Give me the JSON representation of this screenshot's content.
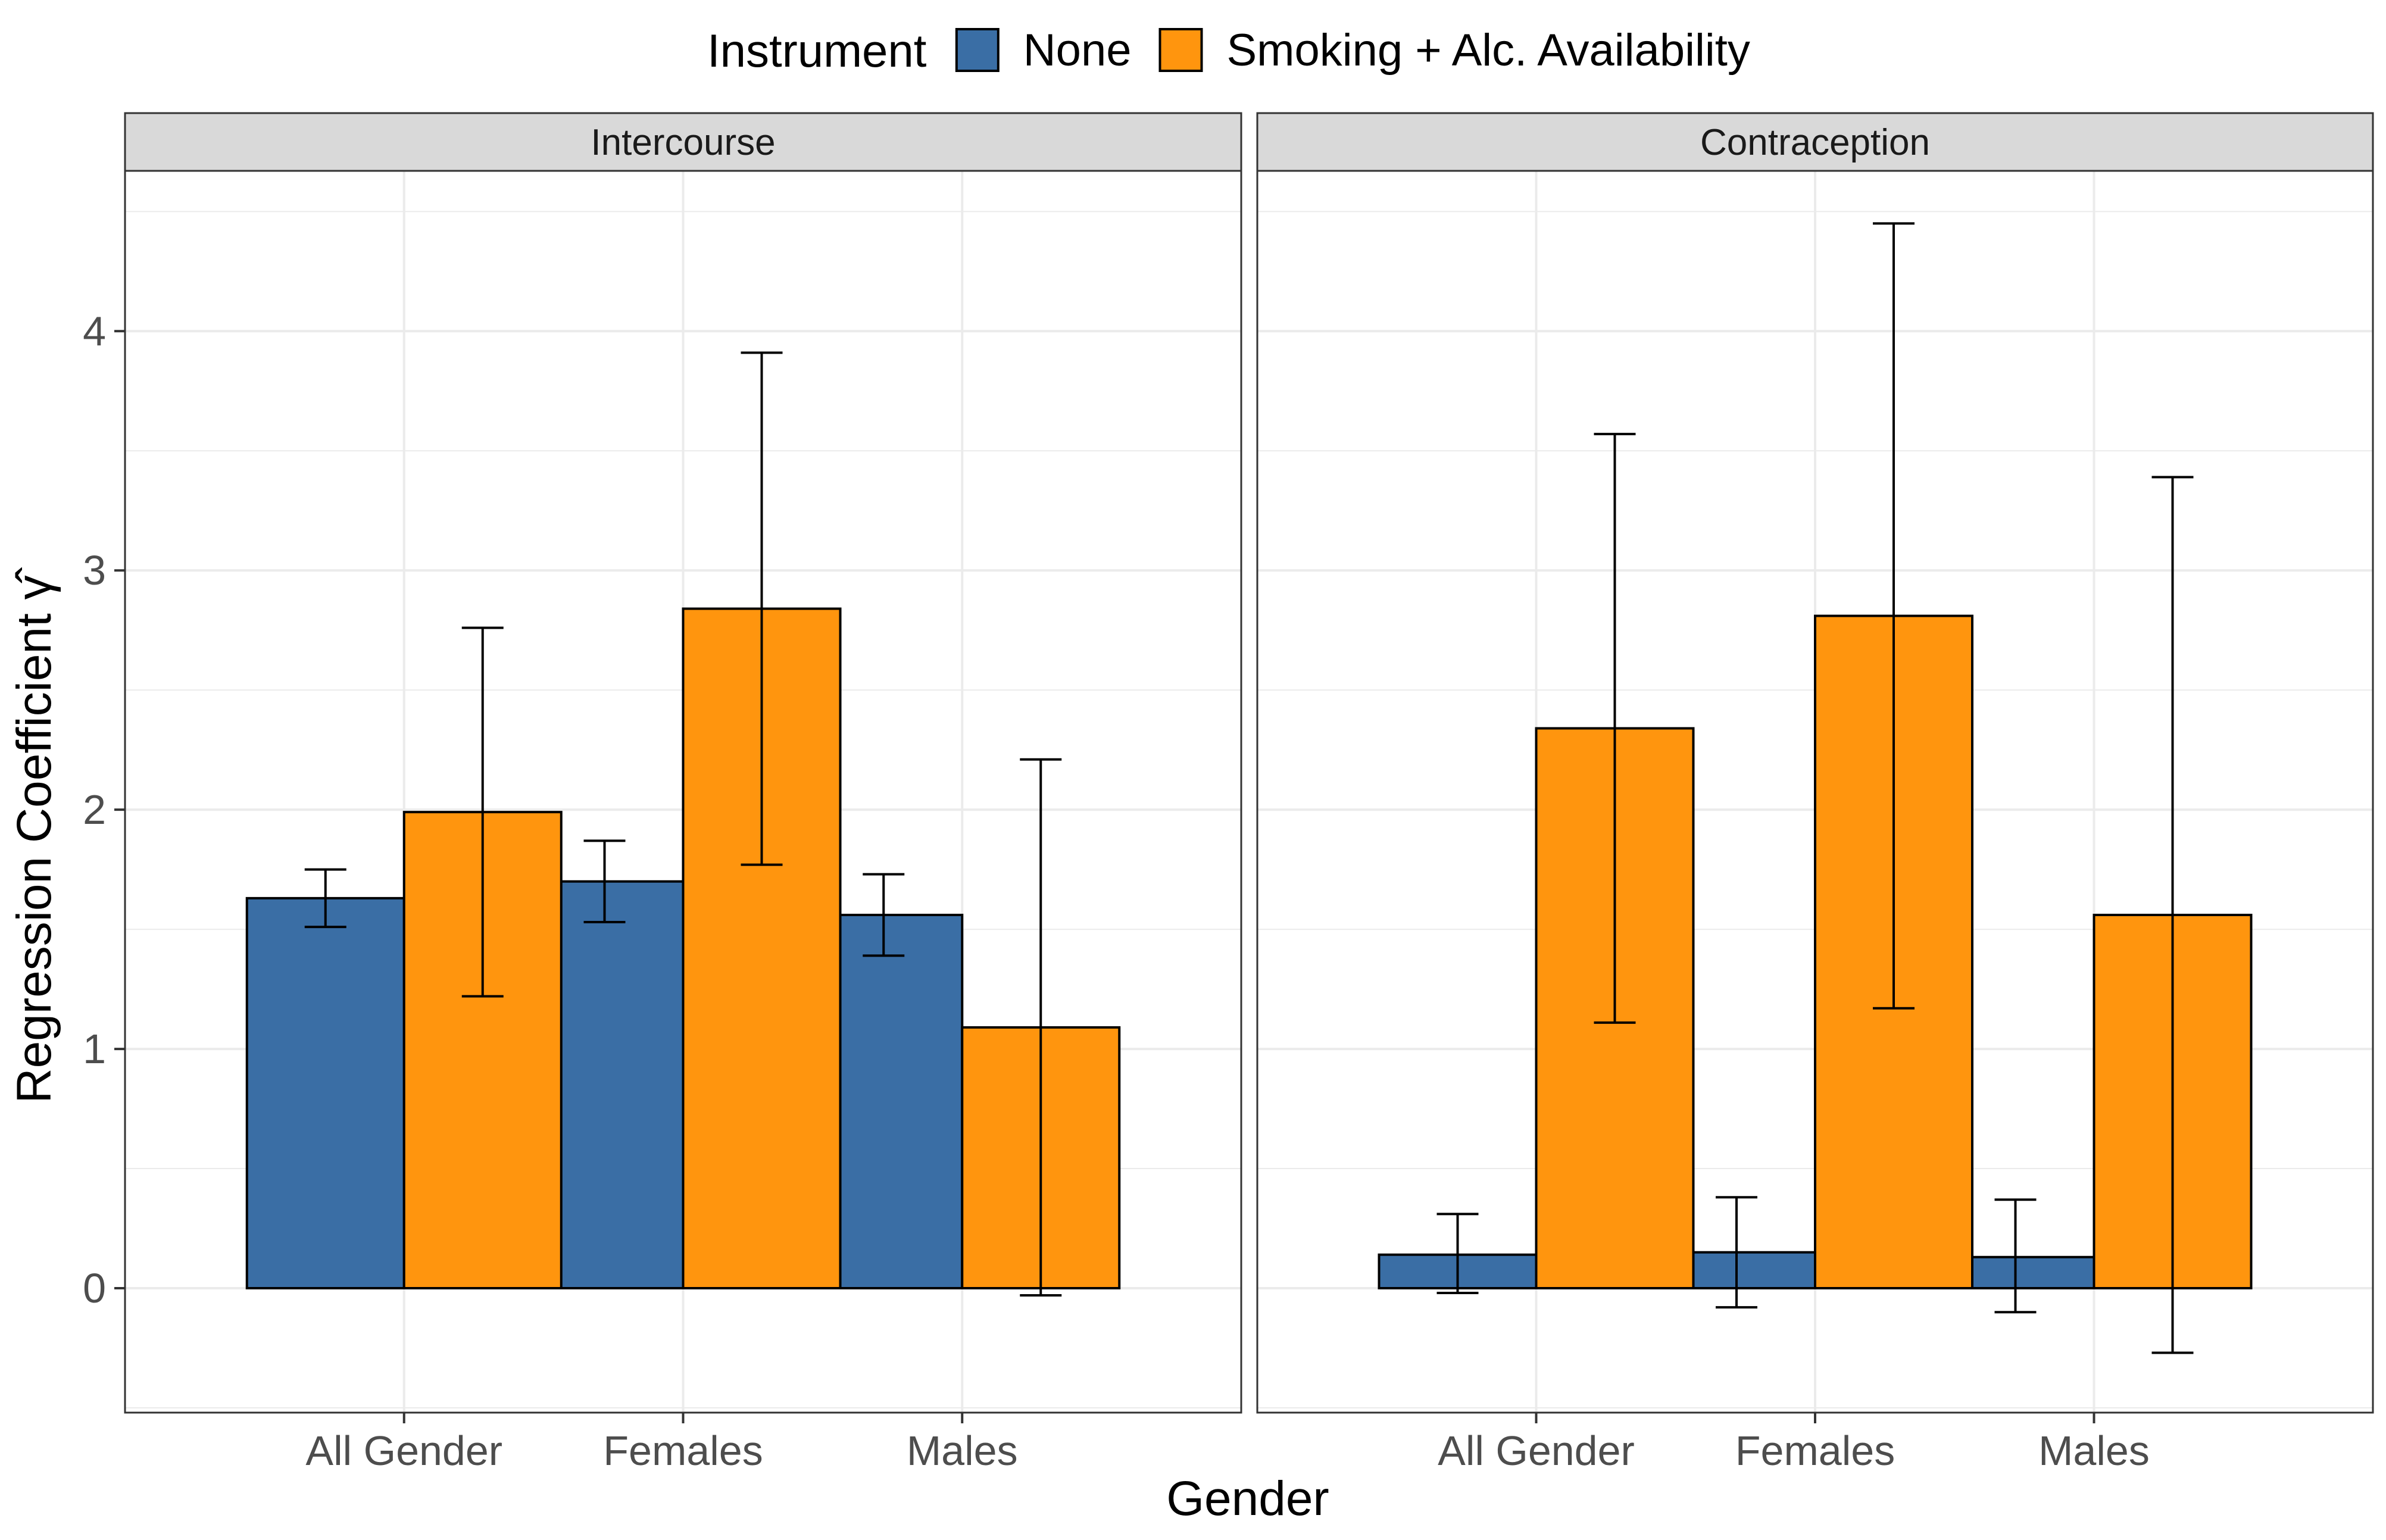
{
  "chart_data": {
    "type": "bar",
    "xlabel": "Gender",
    "ylabel": "Regression Coefficient",
    "ylabel_symbol": "γ̂",
    "ylim": [
      -0.52,
      4.67
    ],
    "yticks": [
      0,
      1,
      2,
      3,
      4
    ],
    "grid": true,
    "legend": {
      "title": "Instrument",
      "placement": "top"
    },
    "categories": [
      "All Gender",
      "Females",
      "Males"
    ],
    "colors": {
      "None": "#3a6ea5",
      "Smoking + Alc. Availability": "#ff950e"
    },
    "panels": [
      {
        "title": "Intercourse",
        "series": [
          {
            "name": "None",
            "values": [
              1.63,
              1.7,
              1.56
            ],
            "lower": [
              1.51,
              1.53,
              1.39
            ],
            "upper": [
              1.75,
              1.87,
              1.73
            ]
          },
          {
            "name": "Smoking + Alc. Availability",
            "values": [
              1.99,
              2.84,
              1.09
            ],
            "lower": [
              1.22,
              1.77,
              -0.03
            ],
            "upper": [
              2.76,
              3.91,
              2.21
            ]
          }
        ]
      },
      {
        "title": "Contraception",
        "series": [
          {
            "name": "None",
            "values": [
              0.14,
              0.15,
              0.13
            ],
            "lower": [
              -0.02,
              -0.08,
              -0.1
            ],
            "upper": [
              0.31,
              0.38,
              0.37
            ]
          },
          {
            "name": "Smoking + Alc. Availability",
            "values": [
              2.34,
              2.81,
              1.56
            ],
            "lower": [
              1.11,
              1.17,
              -0.27
            ],
            "upper": [
              3.57,
              4.45,
              3.39
            ]
          }
        ]
      }
    ]
  }
}
